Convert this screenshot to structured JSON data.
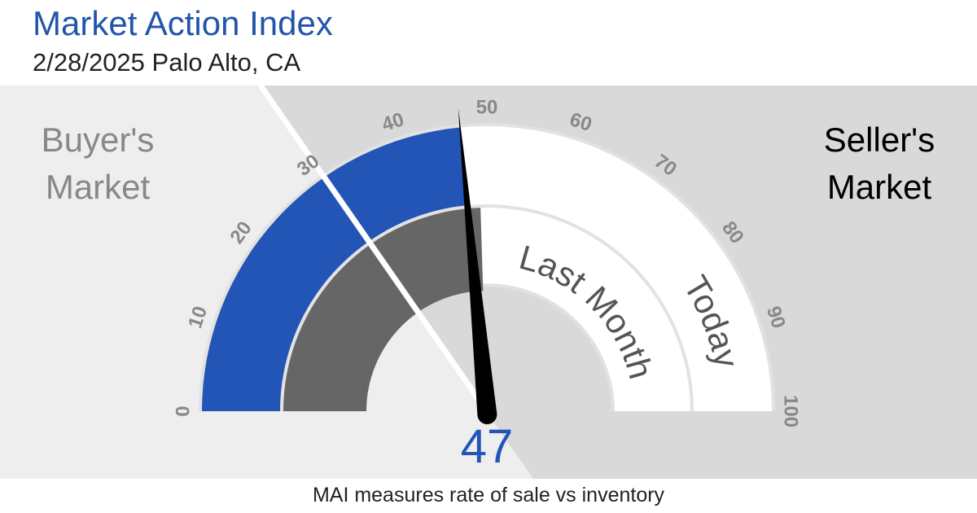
{
  "chart_data": {
    "type": "gauge",
    "title": "Market Action Index",
    "subtitle": "2/28/2025 Palo Alto, CA",
    "left_label": [
      "Buyer's",
      "Market"
    ],
    "right_label": [
      "Seller's",
      "Market"
    ],
    "series": [
      {
        "name": "Today",
        "color": "#2255b5",
        "values": [
          47
        ]
      },
      {
        "name": "Last Month",
        "color": "#666666",
        "values": [
          49
        ]
      }
    ],
    "xlim": [
      0,
      100
    ],
    "xticks": [
      0,
      10,
      20,
      30,
      40,
      50,
      60,
      70,
      80,
      90,
      100
    ],
    "footnote": "MAI measures rate of sale vs inventory"
  }
}
